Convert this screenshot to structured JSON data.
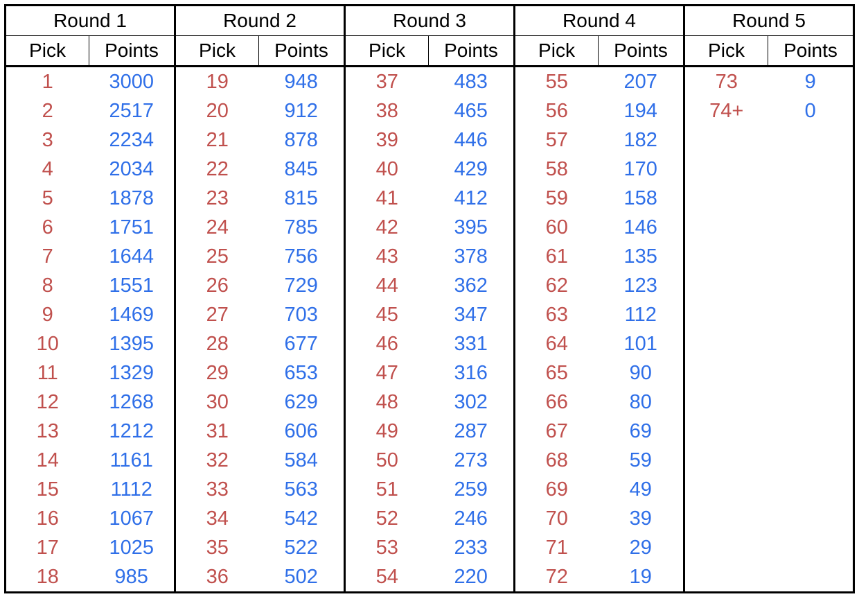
{
  "table": {
    "rounds": [
      {
        "label": "Round 1",
        "pick_header": "Pick",
        "points_header": "Points",
        "rows": [
          {
            "pick": "1",
            "points": "3000"
          },
          {
            "pick": "2",
            "points": "2517"
          },
          {
            "pick": "3",
            "points": "2234"
          },
          {
            "pick": "4",
            "points": "2034"
          },
          {
            "pick": "5",
            "points": "1878"
          },
          {
            "pick": "6",
            "points": "1751"
          },
          {
            "pick": "7",
            "points": "1644"
          },
          {
            "pick": "8",
            "points": "1551"
          },
          {
            "pick": "9",
            "points": "1469"
          },
          {
            "pick": "10",
            "points": "1395"
          },
          {
            "pick": "11",
            "points": "1329"
          },
          {
            "pick": "12",
            "points": "1268"
          },
          {
            "pick": "13",
            "points": "1212"
          },
          {
            "pick": "14",
            "points": "1161"
          },
          {
            "pick": "15",
            "points": "1112"
          },
          {
            "pick": "16",
            "points": "1067"
          },
          {
            "pick": "17",
            "points": "1025"
          },
          {
            "pick": "18",
            "points": "985"
          }
        ]
      },
      {
        "label": "Round 2",
        "pick_header": "Pick",
        "points_header": "Points",
        "rows": [
          {
            "pick": "19",
            "points": "948"
          },
          {
            "pick": "20",
            "points": "912"
          },
          {
            "pick": "21",
            "points": "878"
          },
          {
            "pick": "22",
            "points": "845"
          },
          {
            "pick": "23",
            "points": "815"
          },
          {
            "pick": "24",
            "points": "785"
          },
          {
            "pick": "25",
            "points": "756"
          },
          {
            "pick": "26",
            "points": "729"
          },
          {
            "pick": "27",
            "points": "703"
          },
          {
            "pick": "28",
            "points": "677"
          },
          {
            "pick": "29",
            "points": "653"
          },
          {
            "pick": "30",
            "points": "629"
          },
          {
            "pick": "31",
            "points": "606"
          },
          {
            "pick": "32",
            "points": "584"
          },
          {
            "pick": "33",
            "points": "563"
          },
          {
            "pick": "34",
            "points": "542"
          },
          {
            "pick": "35",
            "points": "522"
          },
          {
            "pick": "36",
            "points": "502"
          }
        ]
      },
      {
        "label": "Round 3",
        "pick_header": "Pick",
        "points_header": "Points",
        "rows": [
          {
            "pick": "37",
            "points": "483"
          },
          {
            "pick": "38",
            "points": "465"
          },
          {
            "pick": "39",
            "points": "446"
          },
          {
            "pick": "40",
            "points": "429"
          },
          {
            "pick": "41",
            "points": "412"
          },
          {
            "pick": "42",
            "points": "395"
          },
          {
            "pick": "43",
            "points": "378"
          },
          {
            "pick": "44",
            "points": "362"
          },
          {
            "pick": "45",
            "points": "347"
          },
          {
            "pick": "46",
            "points": "331"
          },
          {
            "pick": "47",
            "points": "316"
          },
          {
            "pick": "48",
            "points": "302"
          },
          {
            "pick": "49",
            "points": "287"
          },
          {
            "pick": "50",
            "points": "273"
          },
          {
            "pick": "51",
            "points": "259"
          },
          {
            "pick": "52",
            "points": "246"
          },
          {
            "pick": "53",
            "points": "233"
          },
          {
            "pick": "54",
            "points": "220"
          }
        ]
      },
      {
        "label": "Round 4",
        "pick_header": "Pick",
        "points_header": "Points",
        "rows": [
          {
            "pick": "55",
            "points": "207"
          },
          {
            "pick": "56",
            "points": "194"
          },
          {
            "pick": "57",
            "points": "182"
          },
          {
            "pick": "58",
            "points": "170"
          },
          {
            "pick": "59",
            "points": "158"
          },
          {
            "pick": "60",
            "points": "146"
          },
          {
            "pick": "61",
            "points": "135"
          },
          {
            "pick": "62",
            "points": "123"
          },
          {
            "pick": "63",
            "points": "112"
          },
          {
            "pick": "64",
            "points": "101"
          },
          {
            "pick": "65",
            "points": "90"
          },
          {
            "pick": "66",
            "points": "80"
          },
          {
            "pick": "67",
            "points": "69"
          },
          {
            "pick": "68",
            "points": "59"
          },
          {
            "pick": "69",
            "points": "49"
          },
          {
            "pick": "70",
            "points": "39"
          },
          {
            "pick": "71",
            "points": "29"
          },
          {
            "pick": "72",
            "points": "19"
          }
        ]
      },
      {
        "label": "Round 5",
        "pick_header": "Pick",
        "points_header": "Points",
        "rows": [
          {
            "pick": "73",
            "points": "9"
          },
          {
            "pick": "74+",
            "points": "0"
          }
        ]
      }
    ],
    "colors": {
      "pick_text": "#c0504d",
      "points_text": "#2f6fe8",
      "border": "#000000"
    }
  }
}
